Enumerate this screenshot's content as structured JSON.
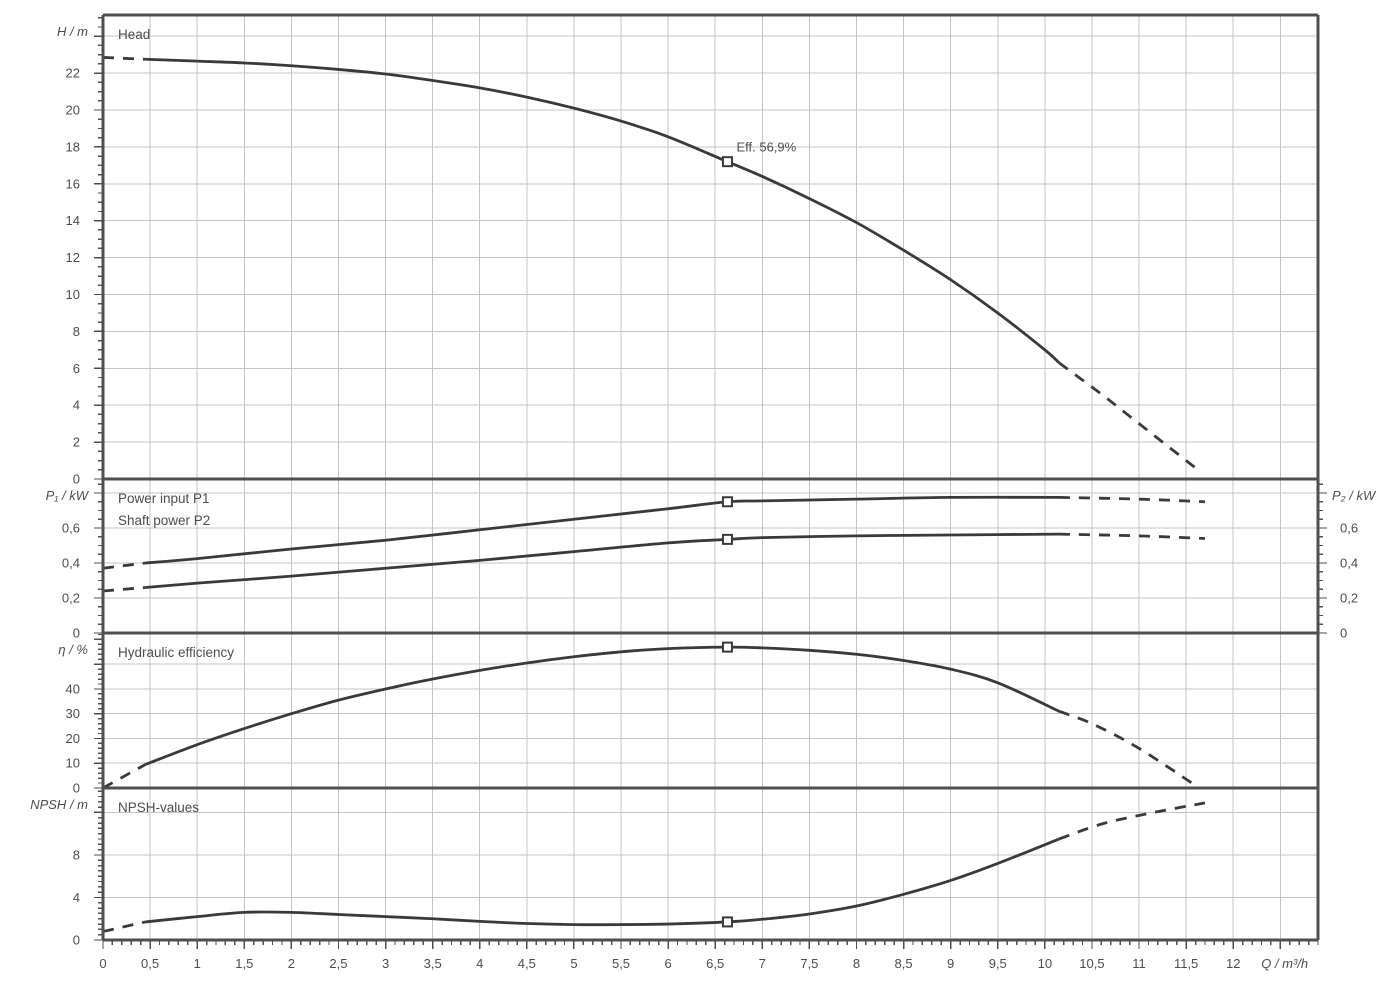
{
  "figure": {
    "background": "#ffffff",
    "colors": {
      "curve": "#3a3a3a",
      "grid": "#c4c4c4",
      "border": "#4f4f4f",
      "text": "#4d4d4d",
      "marker_fill": "#ffffff"
    },
    "x_axis": {
      "label": "Q / m³/h",
      "min": 0,
      "max": 12.9,
      "major_tick_step": 0.5,
      "minor_tick_step": 0.1,
      "last_labeled_value": 12,
      "tick_labels": [
        "0",
        "0,5",
        "1",
        "1,5",
        "2",
        "2,5",
        "3",
        "3,5",
        "4",
        "4,5",
        "5",
        "5,5",
        "6",
        "6,5",
        "7",
        "7,5",
        "8",
        "8,5",
        "9",
        "9,5",
        "10",
        "10,5",
        "11",
        "11,5",
        "12"
      ]
    },
    "annotation": {
      "text": "Eff.  56,9%",
      "q": 6.63,
      "value": 17.2,
      "panel": "head"
    },
    "duty_point_q": 6.63
  },
  "chart_data": [
    {
      "id": "head",
      "type": "line",
      "title_lines": [
        "Head"
      ],
      "ylabel": "H / m",
      "ylim": [
        0,
        25.15
      ],
      "major_tick_step": 2,
      "minor_tick_step": 0.5,
      "yticks": {
        "values": [
          0,
          2,
          4,
          6,
          8,
          10,
          12,
          14,
          16,
          18,
          20,
          22
        ],
        "labels": [
          "0",
          "2",
          "4",
          "6",
          "8",
          "10",
          "12",
          "14",
          "16",
          "18",
          "20",
          "22"
        ]
      },
      "grid_values": [
        2,
        4,
        6,
        8,
        10,
        12,
        14,
        16,
        18,
        20,
        22,
        24
      ],
      "series": [
        {
          "name": "Head curve",
          "marker": [
            6.63,
            17.2
          ],
          "dash_start": [
            [
              0,
              22.85
            ],
            [
              0.45,
              22.75
            ]
          ],
          "solid": [
            [
              0.45,
              22.75
            ],
            [
              1,
              22.65
            ],
            [
              1.5,
              22.55
            ],
            [
              2,
              22.4
            ],
            [
              2.5,
              22.2
            ],
            [
              3,
              21.95
            ],
            [
              3.5,
              21.6
            ],
            [
              4,
              21.2
            ],
            [
              4.5,
              20.7
            ],
            [
              5,
              20.1
            ],
            [
              5.5,
              19.4
            ],
            [
              6,
              18.55
            ],
            [
              6.63,
              17.2
            ],
            [
              7,
              16.4
            ],
            [
              7.5,
              15.2
            ],
            [
              8,
              13.9
            ],
            [
              8.5,
              12.4
            ],
            [
              9,
              10.8
            ],
            [
              9.5,
              9.0
            ],
            [
              10,
              7.0
            ],
            [
              10.15,
              6.3
            ]
          ],
          "dash_end": [
            [
              10.15,
              6.3
            ],
            [
              10.6,
              4.6
            ],
            [
              11,
              3.0
            ],
            [
              11.6,
              0.6
            ]
          ]
        }
      ]
    },
    {
      "id": "power",
      "type": "line",
      "title_lines": [
        "Power input P1",
        "Shaft power P2"
      ],
      "ylabel": "P₁ / kW",
      "ylabel_right": "P₂ / kW",
      "right_axis": true,
      "ylim": [
        0,
        0.88
      ],
      "major_tick_step": 0.2,
      "minor_tick_step": 0.05,
      "yticks": {
        "values": [
          0,
          0.2,
          0.4,
          0.6
        ],
        "labels": [
          "0",
          "0,2",
          "0,4",
          "0,6"
        ]
      },
      "grid_values": [
        0.2,
        0.4,
        0.6,
        0.8
      ],
      "series": [
        {
          "name": "Power input P1",
          "marker": [
            6.63,
            0.75
          ],
          "dash_start": [
            [
              0,
              0.37
            ],
            [
              0.45,
              0.4
            ]
          ],
          "solid": [
            [
              0.45,
              0.4
            ],
            [
              1,
              0.425
            ],
            [
              2,
              0.48
            ],
            [
              3,
              0.53
            ],
            [
              4,
              0.59
            ],
            [
              5,
              0.65
            ],
            [
              6,
              0.71
            ],
            [
              6.63,
              0.75
            ],
            [
              7,
              0.755
            ],
            [
              8,
              0.765
            ],
            [
              9,
              0.775
            ],
            [
              10.15,
              0.775
            ]
          ],
          "dash_end": [
            [
              10.15,
              0.775
            ],
            [
              11,
              0.765
            ],
            [
              11.7,
              0.75
            ]
          ]
        },
        {
          "name": "Shaft power P2",
          "marker": [
            6.63,
            0.535
          ],
          "dash_start": [
            [
              0,
              0.24
            ],
            [
              0.45,
              0.26
            ]
          ],
          "solid": [
            [
              0.45,
              0.26
            ],
            [
              1,
              0.285
            ],
            [
              2,
              0.325
            ],
            [
              3,
              0.37
            ],
            [
              4,
              0.415
            ],
            [
              5,
              0.465
            ],
            [
              6,
              0.515
            ],
            [
              6.63,
              0.535
            ],
            [
              7,
              0.545
            ],
            [
              8,
              0.555
            ],
            [
              9,
              0.56
            ],
            [
              10.15,
              0.565
            ]
          ],
          "dash_end": [
            [
              10.15,
              0.565
            ],
            [
              11,
              0.555
            ],
            [
              11.7,
              0.54
            ]
          ]
        }
      ]
    },
    {
      "id": "eff",
      "type": "line",
      "title_lines": [
        "Hydraulic efficiency"
      ],
      "ylabel": "η / %",
      "ylim": [
        0,
        62.6
      ],
      "major_tick_step": 10,
      "minor_tick_step": 2,
      "yticks": {
        "values": [
          0,
          10,
          20,
          30,
          40
        ],
        "labels": [
          "0",
          "10",
          "20",
          "30",
          "40"
        ]
      },
      "grid_values": [
        10,
        20,
        30,
        40,
        50
      ],
      "series": [
        {
          "name": "Hydraulic efficiency",
          "marker": [
            6.63,
            56.9
          ],
          "dash_start": [
            [
              0,
              0
            ],
            [
              0.45,
              9.5
            ]
          ],
          "solid": [
            [
              0.45,
              9.5
            ],
            [
              1,
              17.5
            ],
            [
              1.5,
              24
            ],
            [
              2,
              30
            ],
            [
              2.5,
              35.5
            ],
            [
              3,
              40
            ],
            [
              3.5,
              44
            ],
            [
              4,
              47.5
            ],
            [
              4.5,
              50.5
            ],
            [
              5,
              53
            ],
            [
              5.5,
              55
            ],
            [
              6,
              56.3
            ],
            [
              6.63,
              56.9
            ],
            [
              7,
              56.6
            ],
            [
              7.5,
              55.6
            ],
            [
              8,
              54
            ],
            [
              8.5,
              51.5
            ],
            [
              9,
              48
            ],
            [
              9.5,
              42.5
            ],
            [
              10.15,
              31
            ]
          ],
          "dash_end": [
            [
              10.15,
              31
            ],
            [
              10.5,
              26
            ],
            [
              11,
              16
            ],
            [
              11.6,
              1
            ]
          ]
        }
      ]
    },
    {
      "id": "npsh",
      "type": "line",
      "title_lines": [
        "NPSH-values"
      ],
      "ylabel": "NPSH / m",
      "ylim": [
        0,
        14.3
      ],
      "major_tick_step": 4,
      "minor_tick_step": 0.5,
      "yticks": {
        "values": [
          0,
          4,
          8
        ],
        "labels": [
          "0",
          "4",
          "8"
        ]
      },
      "grid_values": [
        4,
        8,
        12
      ],
      "series": [
        {
          "name": "NPSH curve",
          "marker": [
            6.63,
            1.7
          ],
          "dash_start": [
            [
              0,
              0.8
            ],
            [
              0.45,
              1.7
            ]
          ],
          "solid": [
            [
              0.45,
              1.7
            ],
            [
              1,
              2.2
            ],
            [
              1.5,
              2.6
            ],
            [
              2,
              2.6
            ],
            [
              2.5,
              2.4
            ],
            [
              3,
              2.2
            ],
            [
              3.5,
              2.0
            ],
            [
              4,
              1.75
            ],
            [
              4.5,
              1.55
            ],
            [
              5,
              1.45
            ],
            [
              5.5,
              1.45
            ],
            [
              6,
              1.5
            ],
            [
              6.63,
              1.7
            ],
            [
              7,
              1.95
            ],
            [
              7.5,
              2.45
            ],
            [
              8,
              3.2
            ],
            [
              8.5,
              4.3
            ],
            [
              9,
              5.6
            ],
            [
              9.5,
              7.2
            ],
            [
              10.15,
              9.5
            ]
          ],
          "dash_end": [
            [
              10.15,
              9.5
            ],
            [
              10.6,
              10.9
            ],
            [
              11.1,
              11.9
            ],
            [
              11.7,
              12.9
            ]
          ]
        }
      ]
    }
  ]
}
